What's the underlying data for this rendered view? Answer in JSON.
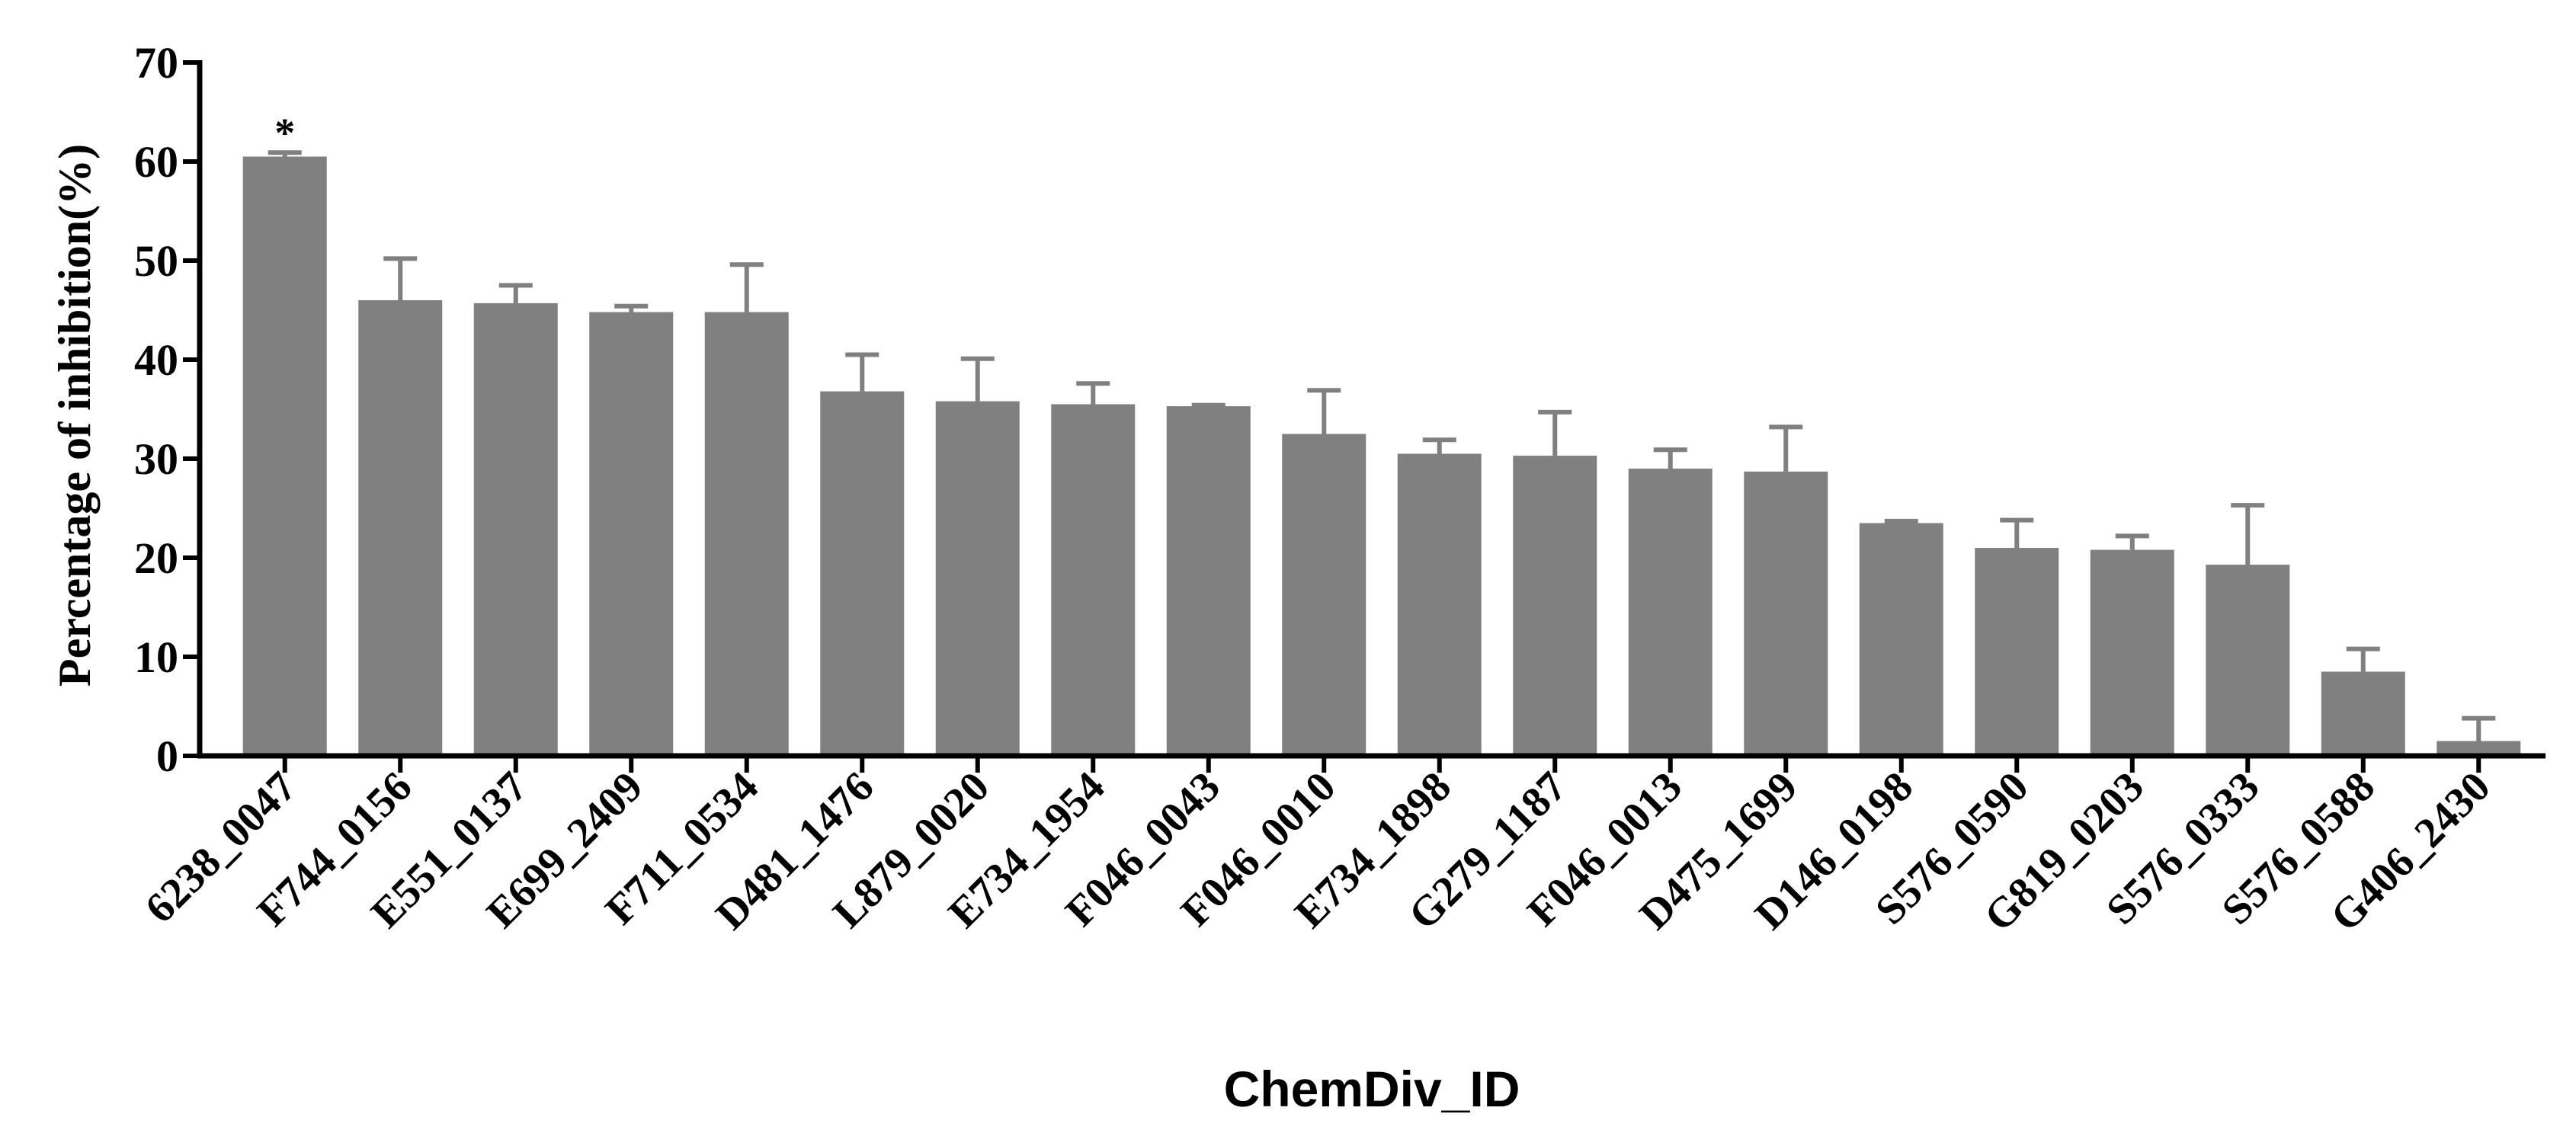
{
  "chart_data": {
    "type": "bar",
    "title": "",
    "xlabel": "ChemDiv_ID",
    "ylabel": "Percentage of inhibition(%)",
    "ylim": [
      0,
      70
    ],
    "yticks": [
      0,
      10,
      20,
      30,
      40,
      50,
      60,
      70
    ],
    "grid": false,
    "legend": "none",
    "bar_color": "#808080",
    "axis_color": "#000000",
    "categories": [
      "6238_0047",
      "F744_0156",
      "E551_0137",
      "E699_2409",
      "F711_0534",
      "D481_1476",
      "L879_0020",
      "E734_1954",
      "F046_0043",
      "F046_0010",
      "E734_1898",
      "G279_1187",
      "F046_0013",
      "D475_1699",
      "D146_0198",
      "S576_0590",
      "G819_0203",
      "S576_0333",
      "S576_0588",
      "G406_2430"
    ],
    "values": [
      60.5,
      46.0,
      45.7,
      44.8,
      44.8,
      36.8,
      35.8,
      35.5,
      35.3,
      32.5,
      30.5,
      30.3,
      29.0,
      28.7,
      23.5,
      21.0,
      20.8,
      19.3,
      8.5,
      1.5
    ],
    "errors": [
      0.4,
      4.2,
      1.8,
      0.6,
      4.8,
      3.7,
      4.3,
      2.1,
      0.1,
      4.4,
      1.4,
      4.4,
      1.9,
      4.5,
      0.2,
      2.8,
      1.4,
      6.0,
      2.3,
      2.3
    ],
    "annotations": [
      {
        "category": "6238_0047",
        "text": "*"
      }
    ]
  }
}
